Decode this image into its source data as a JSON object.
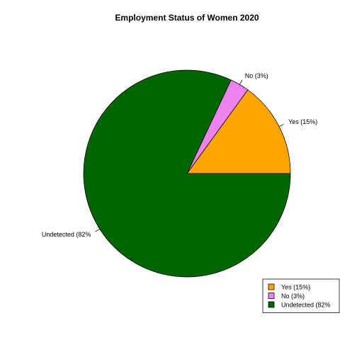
{
  "chart_data": {
    "type": "pie",
    "title": "Employment Status of Women 2020",
    "slices": [
      {
        "label": "Yes (15%)",
        "value": 15,
        "color": "#FFA500"
      },
      {
        "label": "No (3%)",
        "value": 3,
        "color": "#EE82EE"
      },
      {
        "label": "Undetected (82%",
        "value": 82,
        "color": "#006400"
      }
    ],
    "start_angle_deg": 0,
    "direction": "counterclockwise",
    "legend": {
      "position": "bottom-right",
      "items": [
        "Yes (15%)",
        "No (3%)",
        "Undetected (82%"
      ]
    }
  }
}
